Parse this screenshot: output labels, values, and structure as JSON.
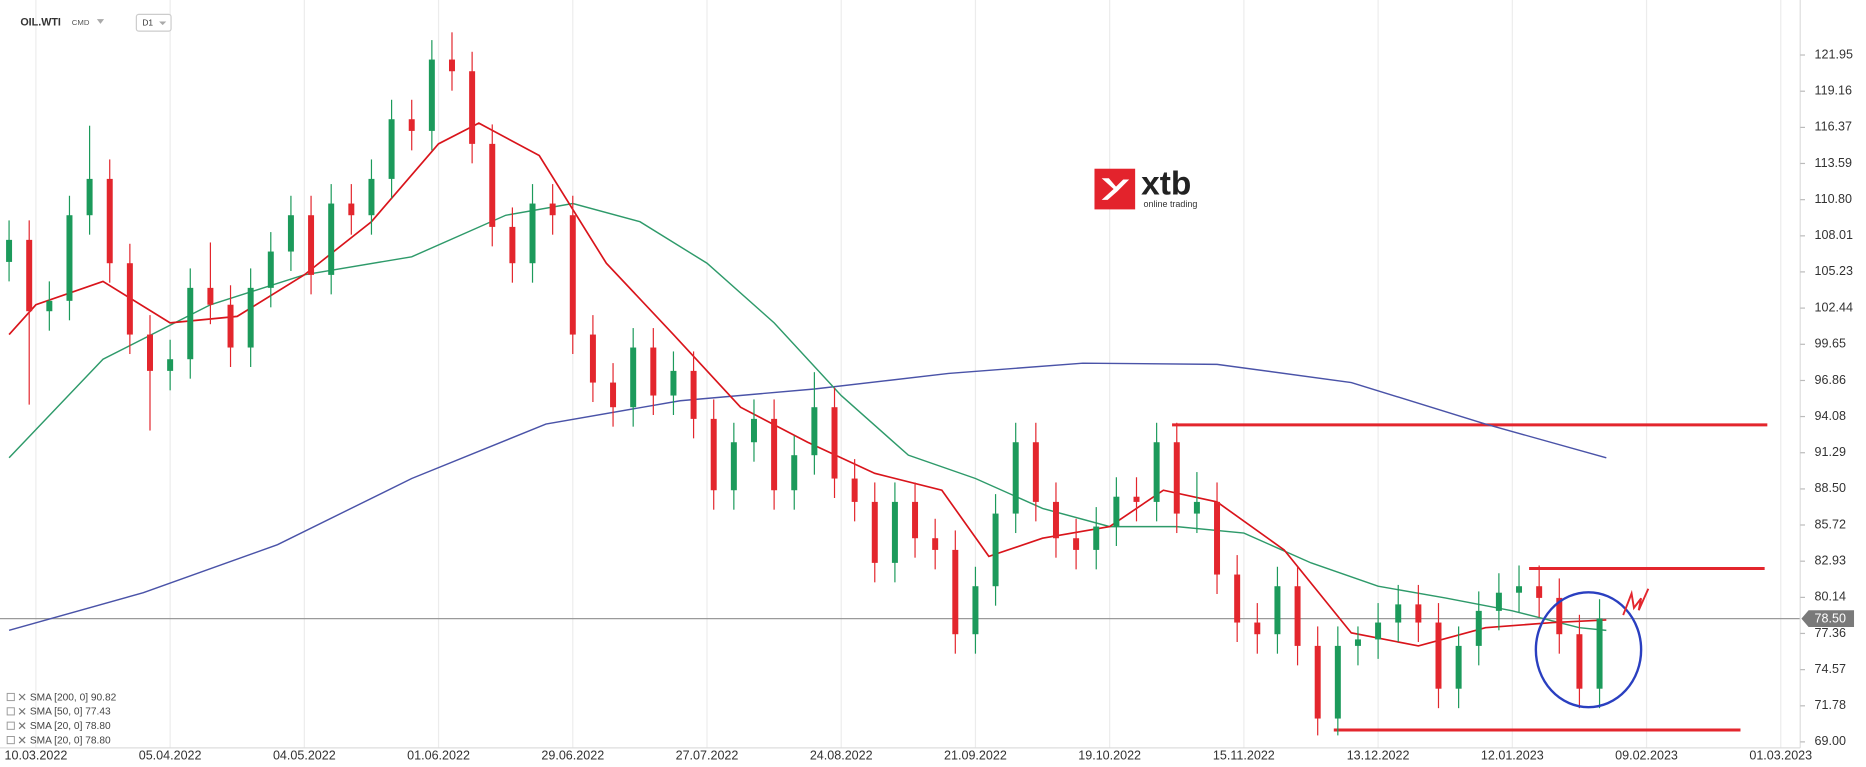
{
  "header": {
    "symbol": "OIL.WTI",
    "market": "CMD",
    "interval": "D1"
  },
  "logo": {
    "brand": "xtb",
    "tagline": "online trading"
  },
  "chart_data": {
    "type": "candlestick",
    "x": [
      -4,
      -1,
      2,
      5,
      8,
      11,
      14,
      17,
      20,
      23,
      26,
      29,
      32,
      35,
      38,
      41,
      44,
      47,
      50,
      53,
      56,
      59,
      62,
      65,
      68,
      71,
      74,
      77,
      80,
      83,
      86,
      89,
      92,
      95,
      98,
      101,
      104,
      107,
      110,
      113,
      116,
      119,
      122,
      125,
      128,
      131,
      134,
      137,
      140,
      143,
      146,
      149,
      152,
      155,
      158,
      161,
      164,
      167,
      170,
      173,
      176,
      179,
      182,
      185,
      188,
      191,
      194,
      197,
      200,
      203,
      206,
      209,
      212,
      215,
      218,
      221,
      224,
      227,
      230,
      233
    ],
    "open": [
      106,
      107.7,
      102.2,
      103,
      109.6,
      112.4,
      105.9,
      100.4,
      97.6,
      98.5,
      104,
      102.7,
      99.4,
      104,
      106.8,
      109.6,
      105,
      110.5,
      109.6,
      112.4,
      117,
      116.1,
      121.6,
      120.7,
      115.1,
      108.7,
      105.9,
      110.5,
      109.6,
      100.4,
      96.7,
      94.8,
      99.4,
      95.7,
      97.6,
      93.9,
      88.4,
      92.1,
      93.9,
      88.4,
      91.1,
      94.8,
      89.3,
      87.5,
      82.8,
      87.5,
      84.7,
      83.8,
      77.3,
      81,
      86.6,
      92.1,
      87.5,
      84.7,
      83.8,
      85.6,
      87.9,
      87.5,
      92.1,
      86.6,
      87.5,
      81.9,
      78.2,
      77.3,
      81,
      76.4,
      70.8,
      76.4,
      76.9,
      78.2,
      79.6,
      78.2,
      73.1,
      76.4,
      79.1,
      80.5,
      81,
      80.1,
      77.3,
      73.1
    ],
    "high": [
      109.2,
      109.2,
      104.5,
      111.1,
      116.5,
      113.9,
      107.4,
      101.9,
      100,
      105.5,
      107.5,
      104.2,
      105.5,
      108.3,
      111.1,
      111.1,
      112,
      112,
      113.9,
      118.5,
      118.5,
      123.1,
      123.7,
      122.2,
      116.6,
      110.2,
      112,
      112,
      111.1,
      101.9,
      98.2,
      100.9,
      100.9,
      99.1,
      99.1,
      95.4,
      93.6,
      95.4,
      95.4,
      92.6,
      97.5,
      96.3,
      90.8,
      89,
      89,
      89,
      86.2,
      85.3,
      82.5,
      88.1,
      93.6,
      93.6,
      89,
      86.2,
      87.1,
      89.4,
      89.4,
      93.6,
      93.6,
      89.8,
      89,
      83.4,
      79.7,
      82.5,
      82.5,
      77.9,
      77.9,
      77.9,
      79.7,
      81.1,
      81.1,
      79.7,
      77.9,
      80.6,
      82,
      82.6,
      82.6,
      81.6,
      78.8,
      80
    ],
    "low": [
      104.5,
      95,
      100.7,
      101.5,
      108.1,
      104.4,
      98.9,
      93,
      96.1,
      97,
      101.2,
      97.9,
      97.9,
      102.5,
      105.3,
      103.5,
      103.5,
      108.1,
      108.1,
      110.9,
      114.6,
      114.6,
      119.2,
      113.6,
      107.2,
      104.4,
      104.4,
      108.1,
      98.9,
      95.2,
      93.3,
      93.3,
      94.2,
      94.2,
      92.4,
      86.9,
      86.9,
      90.6,
      86.9,
      86.9,
      89.6,
      87.8,
      86,
      81.3,
      81.3,
      83.2,
      82.3,
      75.8,
      75.8,
      79.5,
      85.1,
      86,
      83.2,
      82.3,
      82.3,
      84.1,
      86,
      86,
      85.1,
      85.1,
      80.4,
      76.7,
      75.8,
      75.8,
      74.9,
      69.5,
      69.5,
      74.9,
      75.4,
      76.7,
      76.7,
      71.6,
      71.6,
      74.9,
      77.6,
      79,
      78.6,
      75.8,
      71.6,
      71.6
    ],
    "close": [
      107.7,
      102.2,
      103,
      109.6,
      112.4,
      105.9,
      100.4,
      97.6,
      98.5,
      104,
      102.7,
      99.4,
      104,
      106.8,
      109.6,
      105,
      110.5,
      109.6,
      112.4,
      117,
      116.1,
      121.6,
      120.7,
      115.1,
      108.7,
      105.9,
      110.5,
      109.6,
      100.4,
      96.7,
      94.8,
      99.4,
      95.7,
      97.6,
      93.9,
      88.4,
      92.1,
      93.9,
      88.4,
      91.1,
      94.8,
      89.3,
      87.5,
      82.8,
      87.5,
      84.7,
      83.8,
      77.3,
      81,
      86.6,
      92.1,
      87.5,
      84.7,
      83.8,
      85.6,
      87.9,
      87.5,
      92.1,
      86.6,
      87.5,
      81.9,
      78.2,
      77.3,
      81,
      76.4,
      70.8,
      76.4,
      76.9,
      78.2,
      79.6,
      78.2,
      73.1,
      76.4,
      79.1,
      80.5,
      81,
      80.1,
      77.3,
      73.1,
      78.5
    ],
    "up_color": "#1c9a5b",
    "down_color": "#e3262d",
    "series": [
      {
        "color": "#4a53a8",
        "x": [
          -4,
          16,
          36,
          56,
          76,
          96,
          116,
          136,
          156,
          176,
          196,
          216,
          234
        ],
        "values": [
          77.6,
          80.5,
          84.2,
          89.3,
          93.5,
          95.3,
          96.2,
          97.4,
          98.2,
          98.1,
          96.7,
          93.5,
          90.9
        ]
      },
      {
        "color": "#2e9a6a",
        "x": [
          -4,
          10,
          26,
          40,
          56,
          70,
          80,
          90,
          100,
          110,
          120,
          130,
          140,
          150,
          160,
          170,
          180,
          190,
          200,
          210,
          220,
          230,
          234
        ],
        "values": [
          90.9,
          98.5,
          102.7,
          105,
          106.4,
          109.6,
          110.5,
          109.1,
          105.9,
          101.3,
          95.7,
          91.1,
          89.3,
          87,
          85.6,
          85.6,
          85.1,
          82.8,
          81,
          80.1,
          79.1,
          77.8,
          77.6
        ]
      },
      {
        "color": "#d9141b",
        "x": [
          -4,
          0,
          10,
          20,
          30,
          40,
          50,
          60,
          66,
          75,
          85,
          95,
          105,
          115,
          125,
          135,
          142,
          150,
          160,
          168,
          176,
          186,
          196,
          206,
          216,
          226,
          234
        ],
        "values": [
          100.4,
          102.7,
          104.5,
          101.3,
          101.8,
          105,
          109.1,
          115.1,
          116.7,
          114.2,
          105.9,
          100.4,
          94.8,
          92.1,
          89.7,
          88.4,
          83.3,
          84.7,
          85.6,
          88.4,
          87.5,
          83.8,
          77.4,
          76.4,
          77.8,
          78.2,
          78.4
        ]
      }
    ],
    "legend": [
      "SMA [200, 0] 90.82",
      "SMA [50, 0] 77.43",
      "SMA [20, 0] 78.80",
      "SMA [20, 0] 78.80"
    ],
    "levels": [
      {
        "value": 93.44,
        "x": [
          169.3,
          258
        ],
        "color": "#e3262d"
      },
      {
        "value": 82.37,
        "x": [
          222.5,
          257.6
        ],
        "color": "#e3262d"
      },
      {
        "value": 69.92,
        "x": [
          193.4,
          254
        ],
        "color": "#e3262d"
      }
    ],
    "last_price": {
      "value": 78.5,
      "label": "78.50"
    },
    "xlim": [
      -4.46,
      262.9
    ],
    "xticks": [
      {
        "value": 0,
        "label": "10.03.2022"
      },
      {
        "value": 20,
        "label": "05.04.2022"
      },
      {
        "value": 40,
        "label": "04.05.2022"
      },
      {
        "value": 60,
        "label": "01.06.2022"
      },
      {
        "value": 80,
        "label": "29.06.2022"
      },
      {
        "value": 100,
        "label": "27.07.2022"
      },
      {
        "value": 120,
        "label": "24.08.2022"
      },
      {
        "value": 140,
        "label": "21.09.2022"
      },
      {
        "value": 160,
        "label": "19.10.2022"
      },
      {
        "value": 180,
        "label": "15.11.2022"
      },
      {
        "value": 200,
        "label": "13.12.2022"
      },
      {
        "value": 220,
        "label": "12.01.2023"
      },
      {
        "value": 240,
        "label": "09.02.2023"
      },
      {
        "value": 260,
        "label": "01.03.2023"
      }
    ],
    "ylim": [
      68.54,
      125.73
    ],
    "yticks": [
      121.95,
      119.16,
      116.37,
      113.59,
      {
        "value": 110.8,
        "label": "110.80"
      },
      108.01,
      105.23,
      102.44,
      99.65,
      96.86,
      94.08,
      91.29,
      {
        "value": 88.5,
        "label": "88.50"
      },
      85.72,
      82.93,
      80.14,
      77.36,
      74.57,
      71.78,
      {
        "value": 69,
        "label": "69.00"
      }
    ],
    "grid": true
  }
}
